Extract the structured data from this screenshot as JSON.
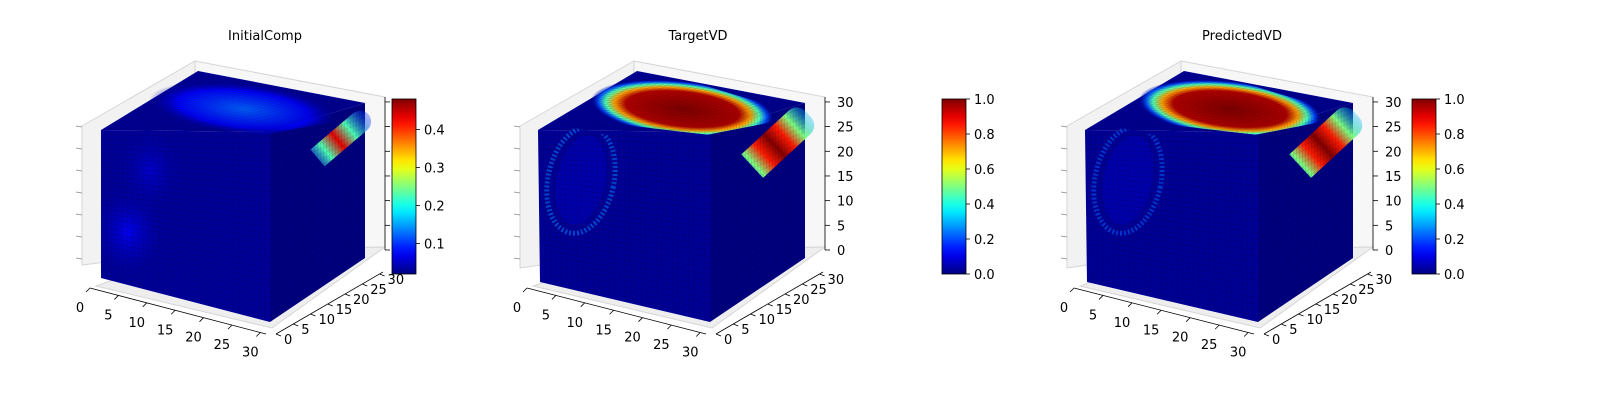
{
  "figure": {
    "panels": [
      {
        "title": "InitialComp",
        "colorbar": {
          "ticks": [
            "0.1",
            "0.2",
            "0.3",
            "0.4"
          ]
        },
        "axes": {
          "x_ticks": [
            "0",
            "5",
            "10",
            "15",
            "20",
            "25",
            "30"
          ],
          "y_ticks": [
            "0",
            "5",
            "10",
            "15",
            "20",
            "25",
            "30"
          ],
          "z_ticks": []
        }
      },
      {
        "title": "TargetVD",
        "colorbar": {
          "ticks": [
            "0.0",
            "0.2",
            "0.4",
            "0.6",
            "0.8",
            "1.0"
          ]
        },
        "axes": {
          "x_ticks": [
            "0",
            "5",
            "10",
            "15",
            "20",
            "25",
            "30"
          ],
          "y_ticks": [
            "0",
            "5",
            "10",
            "15",
            "20",
            "25",
            "30"
          ],
          "z_ticks": [
            "0",
            "5",
            "10",
            "15",
            "20",
            "25",
            "30"
          ]
        }
      },
      {
        "title": "PredictedVD",
        "colorbar": {
          "ticks": [
            "0.0",
            "0.2",
            "0.4",
            "0.6",
            "0.8",
            "1.0"
          ]
        },
        "axes": {
          "x_ticks": [
            "0",
            "5",
            "10",
            "15",
            "20",
            "25",
            "30"
          ],
          "y_ticks": [
            "0",
            "5",
            "10",
            "15",
            "20",
            "25",
            "30"
          ],
          "z_ticks": [
            "0",
            "5",
            "10",
            "15",
            "20",
            "25",
            "30"
          ]
        }
      }
    ]
  },
  "chart_data": [
    {
      "type": "heatmap",
      "subtype": "3d-voxel",
      "title": "InitialComp",
      "grid_size": [
        32,
        32,
        32
      ],
      "colormap": "jet",
      "xlim": [
        0,
        31
      ],
      "ylim": [
        0,
        31
      ],
      "zlim": [
        0,
        31
      ],
      "x_ticks": [
        0,
        5,
        10,
        15,
        20,
        25,
        30
      ],
      "y_ticks": [
        0,
        5,
        10,
        15,
        20,
        25,
        30
      ],
      "z_ticks": [],
      "colorbar": {
        "vmin": 0.02,
        "vmax": 0.48,
        "ticks": [
          0.1,
          0.2,
          0.3,
          0.4
        ]
      },
      "features": {
        "top_face": {
          "background": 0.03,
          "blob_value": 0.12
        },
        "front_face": {
          "background": 0.03,
          "blob_value": 0.07
        },
        "right_face": {
          "background": 0.01,
          "stripe_value": 0.44
        }
      }
    },
    {
      "type": "heatmap",
      "subtype": "3d-voxel",
      "title": "TargetVD",
      "grid_size": [
        32,
        32,
        32
      ],
      "colormap": "jet",
      "xlim": [
        0,
        31
      ],
      "ylim": [
        0,
        31
      ],
      "zlim": [
        0,
        31
      ],
      "x_ticks": [
        0,
        5,
        10,
        15,
        20,
        25,
        30
      ],
      "y_ticks": [
        0,
        5,
        10,
        15,
        20,
        25,
        30
      ],
      "z_ticks": [
        0,
        5,
        10,
        15,
        20,
        25,
        30
      ],
      "colorbar": {
        "vmin": 0.0,
        "vmax": 1.0,
        "ticks": [
          0.0,
          0.2,
          0.4,
          0.6,
          0.8,
          1.0
        ]
      },
      "features": {
        "top_face": {
          "background": 0.02,
          "blob_value": 1.0
        },
        "front_face": {
          "background": 0.02,
          "ring_value": 0.25
        },
        "right_face": {
          "background": 0.0,
          "stripe_value": 1.0
        }
      }
    },
    {
      "type": "heatmap",
      "subtype": "3d-voxel",
      "title": "PredictedVD",
      "grid_size": [
        32,
        32,
        32
      ],
      "colormap": "jet",
      "xlim": [
        0,
        31
      ],
      "ylim": [
        0,
        31
      ],
      "zlim": [
        0,
        31
      ],
      "x_ticks": [
        0,
        5,
        10,
        15,
        20,
        25,
        30
      ],
      "y_ticks": [
        0,
        5,
        10,
        15,
        20,
        25,
        30
      ],
      "z_ticks": [
        0,
        5,
        10,
        15,
        20,
        25,
        30
      ],
      "colorbar": {
        "vmin": 0.0,
        "vmax": 1.0,
        "ticks": [
          0.0,
          0.2,
          0.4,
          0.6,
          0.8,
          1.0
        ]
      },
      "features": {
        "top_face": {
          "background": 0.02,
          "blob_value": 1.0
        },
        "front_face": {
          "background": 0.02,
          "ring_value": 0.22
        },
        "right_face": {
          "background": 0.0,
          "stripe_value": 1.0
        }
      }
    }
  ]
}
